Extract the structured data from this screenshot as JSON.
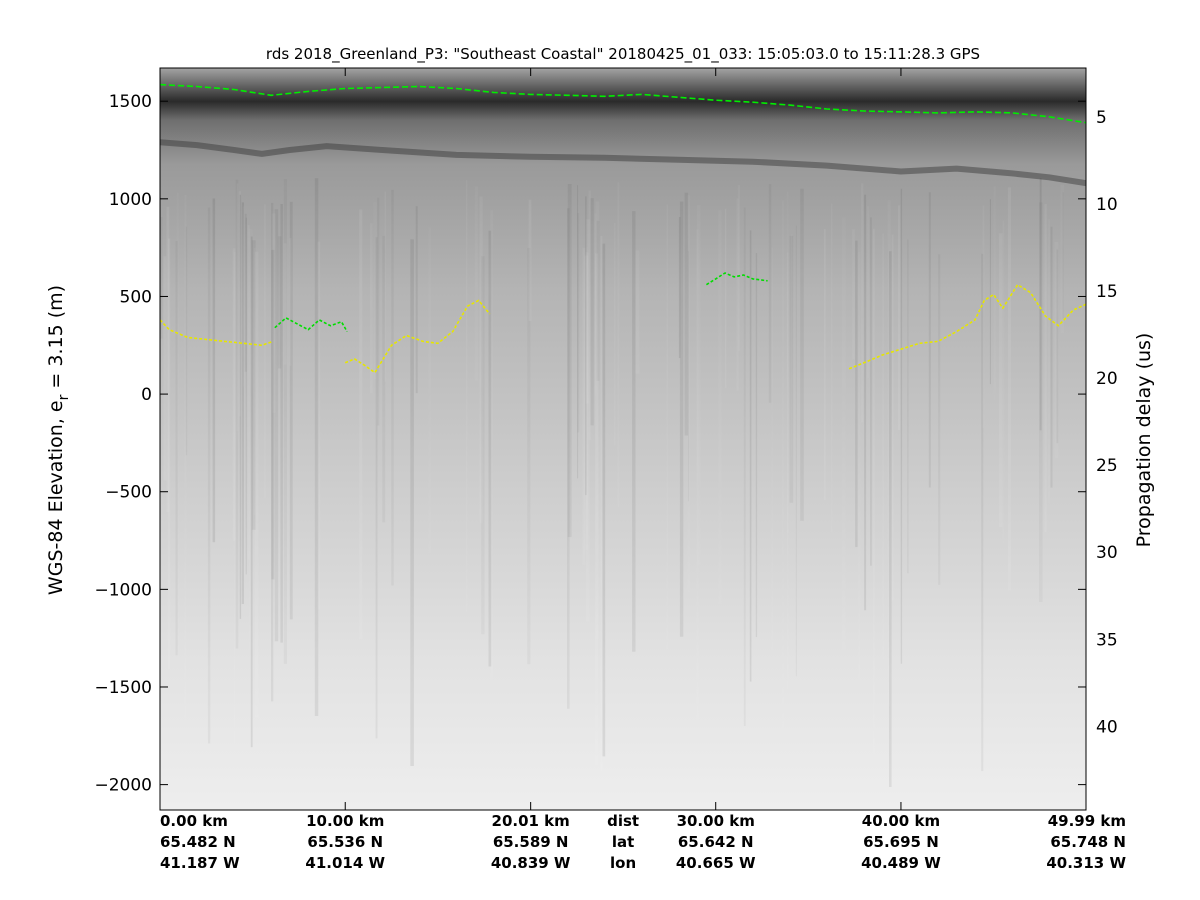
{
  "chart_data": {
    "type": "radargram",
    "title": "rds 2018_Greenland_P3: \"Southeast Coastal\"  20180425_01_033: 15:05:03.0 to 15:11:28.3 GPS",
    "ylabel_left": "WGS-84 Elevation, e",
    "ylabel_left_sub": "r",
    "ylabel_left_tail": " = 3.15 (m)",
    "ylabel_right": "Propagation delay (us)",
    "ylim_left": [
      -2130,
      1670
    ],
    "left_ticks": [
      1500,
      1000,
      500,
      0,
      -500,
      -1000,
      -1500,
      -2000
    ],
    "left_tick_labels": [
      "1500",
      "1000",
      "500",
      "0",
      "−500",
      "−1000",
      "−1500",
      "−2000"
    ],
    "right_ticks": [
      5,
      10,
      15,
      20,
      25,
      30,
      35,
      40
    ],
    "right_tick_labels": [
      "5",
      "10",
      "15",
      "20",
      "25",
      "30",
      "35",
      "40"
    ],
    "right_ylim": [
      2.2,
      44.8
    ],
    "xlim_km": [
      0,
      49.99
    ],
    "footer": {
      "columns": [
        {
          "x_km": 0.0,
          "dist": "0.00 km",
          "lat": "65.482 N",
          "lon": "41.187 W"
        },
        {
          "x_km": 10.0,
          "dist": "10.00 km",
          "lat": "65.536 N",
          "lon": "41.014 W"
        },
        {
          "x_km": 20.01,
          "dist": "20.01 km",
          "lat": "65.589 N",
          "lon": "40.839 W"
        },
        {
          "x_km": 30.0,
          "dist": "30.00 km",
          "lat": "65.642 N",
          "lon": "40.665 W"
        },
        {
          "x_km": 40.0,
          "dist": "40.00 km",
          "lat": "65.695 N",
          "lon": "40.489 W"
        },
        {
          "x_km": 49.99,
          "dist": "49.99 km",
          "lat": "65.748 N",
          "lon": "40.313 W"
        }
      ],
      "row_labels": {
        "x_km": 25.0,
        "dist": "dist",
        "lat": "lat",
        "lon": "lon"
      }
    },
    "series": [
      {
        "kind": "surface",
        "color": "#00ee00",
        "x": [
          0,
          2,
          4,
          6,
          8,
          10,
          12,
          14,
          16,
          18,
          20,
          22,
          24,
          26,
          28,
          30,
          32,
          34,
          36,
          38,
          40,
          42,
          44,
          46,
          48,
          49.99
        ],
        "y": [
          1585,
          1575,
          1560,
          1530,
          1550,
          1565,
          1570,
          1575,
          1565,
          1545,
          1535,
          1530,
          1525,
          1535,
          1520,
          1505,
          1495,
          1480,
          1460,
          1450,
          1445,
          1440,
          1445,
          1440,
          1420,
          1390
        ]
      },
      {
        "kind": "internal-layer",
        "color": "#333333",
        "x": [
          0,
          2,
          4,
          5.5,
          7,
          9,
          12,
          16,
          20,
          24,
          28,
          32,
          36,
          40,
          43,
          46,
          48,
          49.99
        ],
        "y": [
          1290,
          1275,
          1250,
          1230,
          1250,
          1270,
          1250,
          1225,
          1215,
          1210,
          1200,
          1190,
          1170,
          1140,
          1155,
          1130,
          1110,
          1080
        ]
      },
      {
        "kind": "bed",
        "color": "#00dd00",
        "x": [
          6.2,
          6.8,
          7.4,
          8.0,
          8.6,
          9.2,
          9.8,
          10.1
        ],
        "y": [
          340,
          390,
          360,
          330,
          380,
          350,
          370,
          320
        ]
      },
      {
        "kind": "bed",
        "color": "#e6e600",
        "x": [
          0,
          0.5,
          1.5,
          2.5,
          3.5,
          4.5,
          5.5,
          6.1
        ],
        "y": [
          380,
          330,
          290,
          280,
          270,
          260,
          250,
          270
        ]
      },
      {
        "kind": "bed",
        "color": "#e6e600",
        "x": [
          10.0,
          10.5,
          11.0,
          11.6,
          12.5,
          13.3,
          14.2,
          15.0,
          15.8,
          16.6,
          17.2,
          17.8
        ],
        "y": [
          160,
          180,
          150,
          110,
          250,
          300,
          270,
          260,
          320,
          450,
          480,
          410
        ]
      },
      {
        "kind": "bed",
        "color": "#00dd00",
        "x": [
          29.5,
          30.0,
          30.5,
          31.0,
          31.5,
          32.0,
          32.8
        ],
        "y": [
          560,
          590,
          620,
          600,
          610,
          590,
          580
        ]
      },
      {
        "kind": "bed",
        "color": "#e6e600",
        "x": [
          37.2,
          38.0,
          39.0,
          40.0,
          41.0,
          42.0,
          43.0,
          44.0,
          44.5,
          45.0,
          45.5,
          46.3,
          47.0,
          47.8,
          48.5,
          49.3,
          49.99
        ],
        "y": [
          130,
          160,
          200,
          230,
          260,
          270,
          320,
          380,
          480,
          510,
          440,
          560,
          520,
          400,
          350,
          430,
          460
        ]
      }
    ]
  }
}
